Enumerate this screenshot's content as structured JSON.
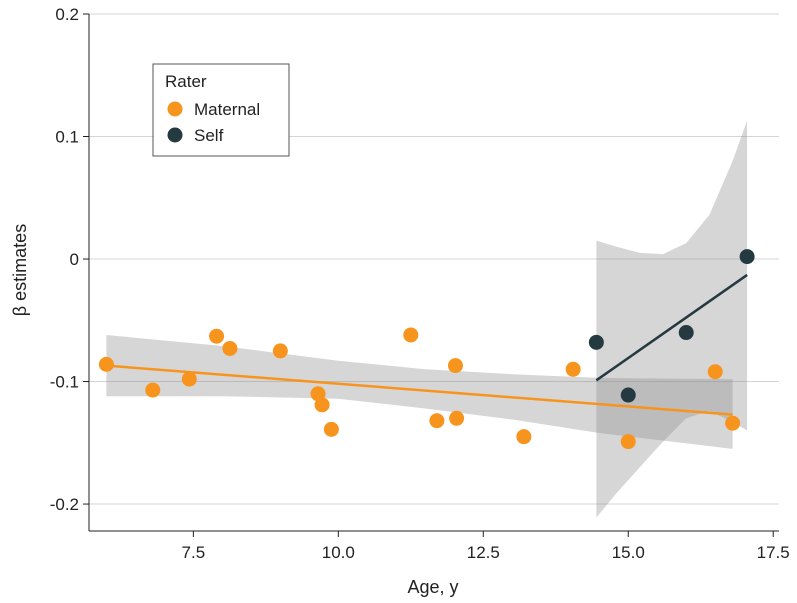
{
  "chart_data": {
    "type": "scatter",
    "xlabel": "Age, y",
    "ylabel": "β estimates",
    "xlim": [
      5.7,
      17.6
    ],
    "ylim": [
      -0.222,
      0.2
    ],
    "xticks": [
      7.5,
      10.0,
      12.5,
      15.0,
      17.5
    ],
    "xtick_labels": [
      "7.5",
      "10.0",
      "12.5",
      "15.0",
      "17.5"
    ],
    "yticks": [
      0.2,
      0.1,
      0,
      -0.1,
      -0.2
    ],
    "ytick_labels": [
      "0.2",
      "0.1",
      "0",
      "-0.1",
      "-0.2"
    ],
    "grid": "horizontal",
    "legend": {
      "title": "Rater",
      "placement": "top-left",
      "items": [
        {
          "label": "Maternal",
          "color": "#F7941D"
        },
        {
          "label": "Self",
          "color": "#243A40"
        }
      ]
    },
    "series": [
      {
        "name": "Maternal",
        "color": "#F7941D",
        "points": [
          {
            "x": 6.0,
            "y": -0.086
          },
          {
            "x": 6.8,
            "y": -0.107
          },
          {
            "x": 7.43,
            "y": -0.098
          },
          {
            "x": 7.9,
            "y": -0.063
          },
          {
            "x": 8.13,
            "y": -0.073
          },
          {
            "x": 9.0,
            "y": -0.075
          },
          {
            "x": 9.65,
            "y": -0.11
          },
          {
            "x": 9.72,
            "y": -0.119
          },
          {
            "x": 9.88,
            "y": -0.139
          },
          {
            "x": 11.25,
            "y": -0.062
          },
          {
            "x": 11.7,
            "y": -0.132
          },
          {
            "x": 12.02,
            "y": -0.087
          },
          {
            "x": 12.04,
            "y": -0.13
          },
          {
            "x": 13.2,
            "y": -0.145
          },
          {
            "x": 14.05,
            "y": -0.09
          },
          {
            "x": 15.0,
            "y": -0.149
          },
          {
            "x": 16.5,
            "y": -0.092
          },
          {
            "x": 16.8,
            "y": -0.134
          }
        ],
        "fit": {
          "x": [
            6.0,
            16.8
          ],
          "y": [
            -0.087,
            -0.127
          ]
        },
        "band": {
          "x": [
            6.0,
            8.0,
            10.0,
            11.5,
            13.0,
            14.5,
            16.8
          ],
          "upper": [
            -0.062,
            -0.071,
            -0.083,
            -0.09,
            -0.094,
            -0.097,
            -0.098
          ],
          "lower": [
            -0.112,
            -0.112,
            -0.114,
            -0.122,
            -0.131,
            -0.142,
            -0.155
          ]
        }
      },
      {
        "name": "Self",
        "color": "#243A40",
        "points": [
          {
            "x": 14.45,
            "y": -0.068
          },
          {
            "x": 15.0,
            "y": -0.111
          },
          {
            "x": 16.0,
            "y": -0.06
          },
          {
            "x": 17.05,
            "y": 0.002
          }
        ],
        "fit": {
          "x": [
            14.45,
            17.05
          ],
          "y": [
            -0.099,
            -0.013
          ]
        },
        "band": {
          "x": [
            14.45,
            14.8,
            15.2,
            15.6,
            16.0,
            16.4,
            16.8,
            17.05
          ],
          "upper": [
            0.015,
            0.01,
            0.005,
            0.004,
            0.013,
            0.036,
            0.08,
            0.113
          ],
          "lower": [
            -0.211,
            -0.191,
            -0.17,
            -0.149,
            -0.13,
            -0.124,
            -0.133,
            -0.14
          ]
        }
      }
    ]
  }
}
